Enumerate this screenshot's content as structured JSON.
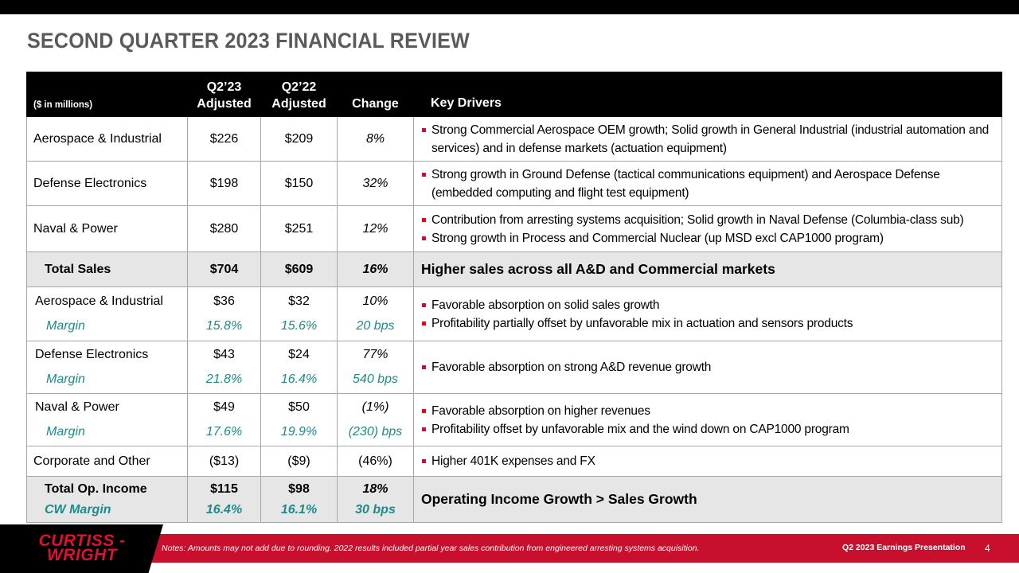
{
  "title": "SECOND QUARTER 2023 FINANCIAL REVIEW",
  "table": {
    "headers": {
      "label": "($ in millions)",
      "q23": [
        "Q2’23",
        "Adjusted"
      ],
      "q22": [
        "Q2’22",
        "Adjusted"
      ],
      "change": "Change",
      "drivers": "Key Drivers"
    },
    "sales": [
      {
        "segment": "Aerospace & Industrial",
        "q23": "$226",
        "q22": "$209",
        "change": "8%",
        "drivers": [
          "Strong Commercial Aerospace OEM growth; Solid growth in General Industrial (industrial automation and services) and in defense markets (actuation equipment)"
        ]
      },
      {
        "segment": "Defense Electronics",
        "q23": "$198",
        "q22": "$150",
        "change": "32%",
        "drivers": [
          "Strong growth in Ground Defense (tactical communications equipment) and Aerospace Defense (embedded computing and flight test equipment)"
        ]
      },
      {
        "segment": "Naval & Power",
        "q23": "$280",
        "q22": "$251",
        "change": "12%",
        "drivers": [
          "Contribution from arresting systems acquisition; Solid growth in Naval Defense (Columbia-class sub)",
          "Strong growth in Process and Commercial Nuclear (up MSD excl CAP1000 program)"
        ]
      }
    ],
    "total_sales": {
      "label": "Total Sales",
      "q23": "$704",
      "q22": "$609",
      "change": "16%",
      "driver": "Higher sales across all A&D and Commercial markets"
    },
    "op_income": [
      {
        "segment": "Aerospace & Industrial",
        "margin_label": "Margin",
        "q23": "$36",
        "q22": "$32",
        "change": "10%",
        "q23_margin": "15.8%",
        "q22_margin": "15.6%",
        "change_margin": "20 bps",
        "drivers": [
          "Favorable absorption on solid sales growth",
          "Profitability  partially offset by unfavorable mix in actuation and sensors products"
        ]
      },
      {
        "segment": "Defense Electronics",
        "margin_label": "Margin",
        "q23": "$43",
        "q22": "$24",
        "change": "77%",
        "q23_margin": "21.8%",
        "q22_margin": "16.4%",
        "change_margin": "540 bps",
        "drivers": [
          "Favorable absorption on strong A&D revenue growth"
        ]
      },
      {
        "segment": "Naval & Power",
        "margin_label": "Margin",
        "q23": "$49",
        "q22": "$50",
        "change": "(1%)",
        "q23_margin": "17.6%",
        "q22_margin": "19.9%",
        "change_margin": "(230) bps",
        "drivers": [
          "Favorable absorption on higher revenues",
          "Profitability  offset by unfavorable mix and the wind down on CAP1000 program"
        ]
      }
    ],
    "corporate": {
      "segment": "Corporate and Other",
      "q23": "($13)",
      "q22": "($9)",
      "change": "(46%)",
      "drivers": [
        "Higher 401K expenses and FX"
      ]
    },
    "total_op": {
      "label": "Total Op. Income",
      "margin_label": "CW Margin",
      "q23": "$115",
      "q22": "$98",
      "change": "18%",
      "q23_margin": "16.4%",
      "q22_margin": "16.1%",
      "change_margin": "30 bps",
      "driver": "Operating Income Growth > Sales Growth"
    }
  },
  "footer": {
    "logo_line1": "CURTISS -",
    "logo_line2": "WRIGHT",
    "notes": "Notes: Amounts may not add due to rounding. 2022 results included partial year sales contribution from engineered arresting systems acquisition.",
    "presentation": "Q2 2023 Earnings Presentation",
    "page": "4"
  },
  "colors": {
    "accent": "#c8102e",
    "teal": "#1f8a8a",
    "title_gray": "#5a5a5a",
    "total_bg": "#e6e6e6"
  }
}
